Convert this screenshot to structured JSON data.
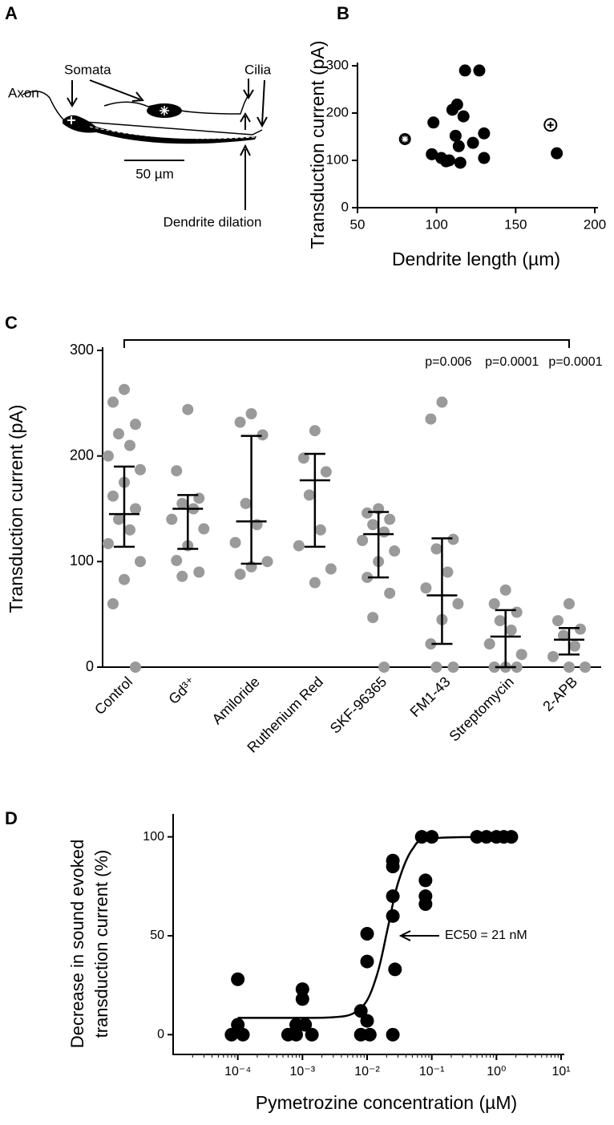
{
  "diagram": {
    "panel": "A",
    "labels": {
      "axon": "Axon",
      "somata": "Somata",
      "cilia": "Cilia",
      "scale": "50 µm",
      "dilation": "Dendrite dilation"
    }
  },
  "chart_data": [
    {
      "type": "scatter",
      "panel": "B",
      "xlabel": "Dendrite length (µm)",
      "ylabel": "Transduction current (pA)",
      "xlim": [
        50,
        200
      ],
      "xticks": [
        50,
        100,
        150,
        200
      ],
      "ylim": [
        0,
        300
      ],
      "yticks": [
        0,
        100,
        200,
        300
      ],
      "series": [
        {
          "color": "#000000",
          "marker": "dot",
          "x": [
            98,
            97,
            103,
            108,
            106,
            110,
            113,
            112,
            114,
            117,
            115,
            118,
            127,
            123,
            130,
            130,
            176
          ],
          "values": [
            180,
            113,
            105,
            100,
            98,
            207,
            218,
            152,
            130,
            193,
            95,
            290,
            290,
            137,
            157,
            105,
            115
          ]
        },
        {
          "color": "#000000",
          "marker": "asterisk",
          "x": [
            80
          ],
          "values": [
            145
          ]
        },
        {
          "color": "#000000",
          "marker": "plus",
          "x": [
            172
          ],
          "values": [
            175
          ]
        }
      ]
    },
    {
      "type": "strip",
      "panel": "C",
      "ylabel": "Transduction current (pA)",
      "color": "#9a9a9a",
      "ylim": [
        0,
        300
      ],
      "yticks": [
        0,
        100,
        200,
        300
      ],
      "categories": [
        "Control",
        "Gd³⁺",
        "Amiloride",
        "Ruthenium Red",
        "SKF-96365",
        "FM1-43",
        "Streptomycin",
        "2-APB"
      ],
      "values": [
        [
          263,
          251,
          230,
          221,
          210,
          200,
          187,
          175,
          162,
          150,
          140,
          130,
          117,
          100,
          83,
          60,
          0
        ],
        [
          244,
          186,
          160,
          155,
          150,
          140,
          131,
          115,
          101,
          90,
          86
        ],
        [
          240,
          232,
          220,
          155,
          135,
          118,
          100,
          95,
          88
        ],
        [
          224,
          198,
          185,
          163,
          130,
          115,
          93,
          80
        ],
        [
          150,
          146,
          140,
          135,
          128,
          120,
          110,
          100,
          85,
          70,
          47,
          0
        ],
        [
          251,
          235,
          121,
          112,
          90,
          75,
          60,
          45,
          22,
          0,
          0
        ],
        [
          73,
          60,
          52,
          44,
          35,
          22,
          12,
          0,
          0,
          0
        ],
        [
          60,
          44,
          36,
          30,
          20,
          10,
          0,
          0
        ]
      ],
      "means": [
        145,
        150,
        138,
        177,
        126,
        68,
        29,
        26
      ],
      "err_low": [
        114,
        112,
        98,
        114,
        85,
        22,
        0,
        12
      ],
      "err_high": [
        190,
        163,
        219,
        202,
        147,
        122,
        54,
        37
      ],
      "annotations": [
        "p=0.006",
        "p=0.0001",
        "p=0.0001"
      ]
    },
    {
      "type": "scatter",
      "panel": "D",
      "xscale": "log",
      "xlabel": "Pymetrozine concentration (µM)",
      "ylabel": [
        "Decrease in sound evoked",
        "transduction current (%)"
      ],
      "xlim": [
        1e-05,
        10
      ],
      "xticks": [
        {
          "value": 0.0001,
          "label": "10⁻⁴"
        },
        {
          "value": 0.001,
          "label": "10⁻³"
        },
        {
          "value": 0.01,
          "label": "10⁻²"
        },
        {
          "value": 0.1,
          "label": "10⁻¹"
        },
        {
          "value": 1,
          "label": "10⁰"
        },
        {
          "value": 10,
          "label": "10¹"
        }
      ],
      "ylim": [
        -10,
        110
      ],
      "yticks": [
        0,
        50,
        100
      ],
      "annotation": "EC50 = 21 nM",
      "series": [
        {
          "color": "#000000",
          "marker": "dot",
          "x": [
            8e-05,
            0.0001,
            0.0001,
            0.00012,
            0.0006,
            0.001,
            0.001,
            0.0008,
            0.0011,
            0.0014,
            0.0008,
            0.008,
            0.01,
            0.01,
            0.008,
            0.01,
            0.011,
            0.025,
            0.025,
            0.025,
            0.025,
            0.027,
            0.025,
            0.07,
            0.1,
            0.08,
            0.08,
            0.08,
            0.5,
            0.7,
            1,
            1.3,
            1.7
          ],
          "values": [
            0,
            28,
            5,
            0,
            0,
            23,
            18,
            5,
            5,
            0,
            0,
            0,
            51,
            37,
            12,
            7,
            0,
            88,
            85,
            70,
            60,
            33,
            0,
            100,
            100,
            78,
            70,
            66,
            100,
            100,
            100,
            100,
            100
          ]
        },
        {
          "color": "#000000",
          "marker": "line",
          "x": [
            0.0001,
            0.001,
            0.003,
            0.006,
            0.01,
            0.015,
            0.021,
            0.03,
            0.05,
            0.1,
            1.7
          ],
          "values": [
            8.5,
            8.5,
            8.8,
            10.6,
            17.4,
            32.9,
            54.3,
            76.6,
            93.7,
            99.2,
            100
          ]
        }
      ]
    }
  ]
}
